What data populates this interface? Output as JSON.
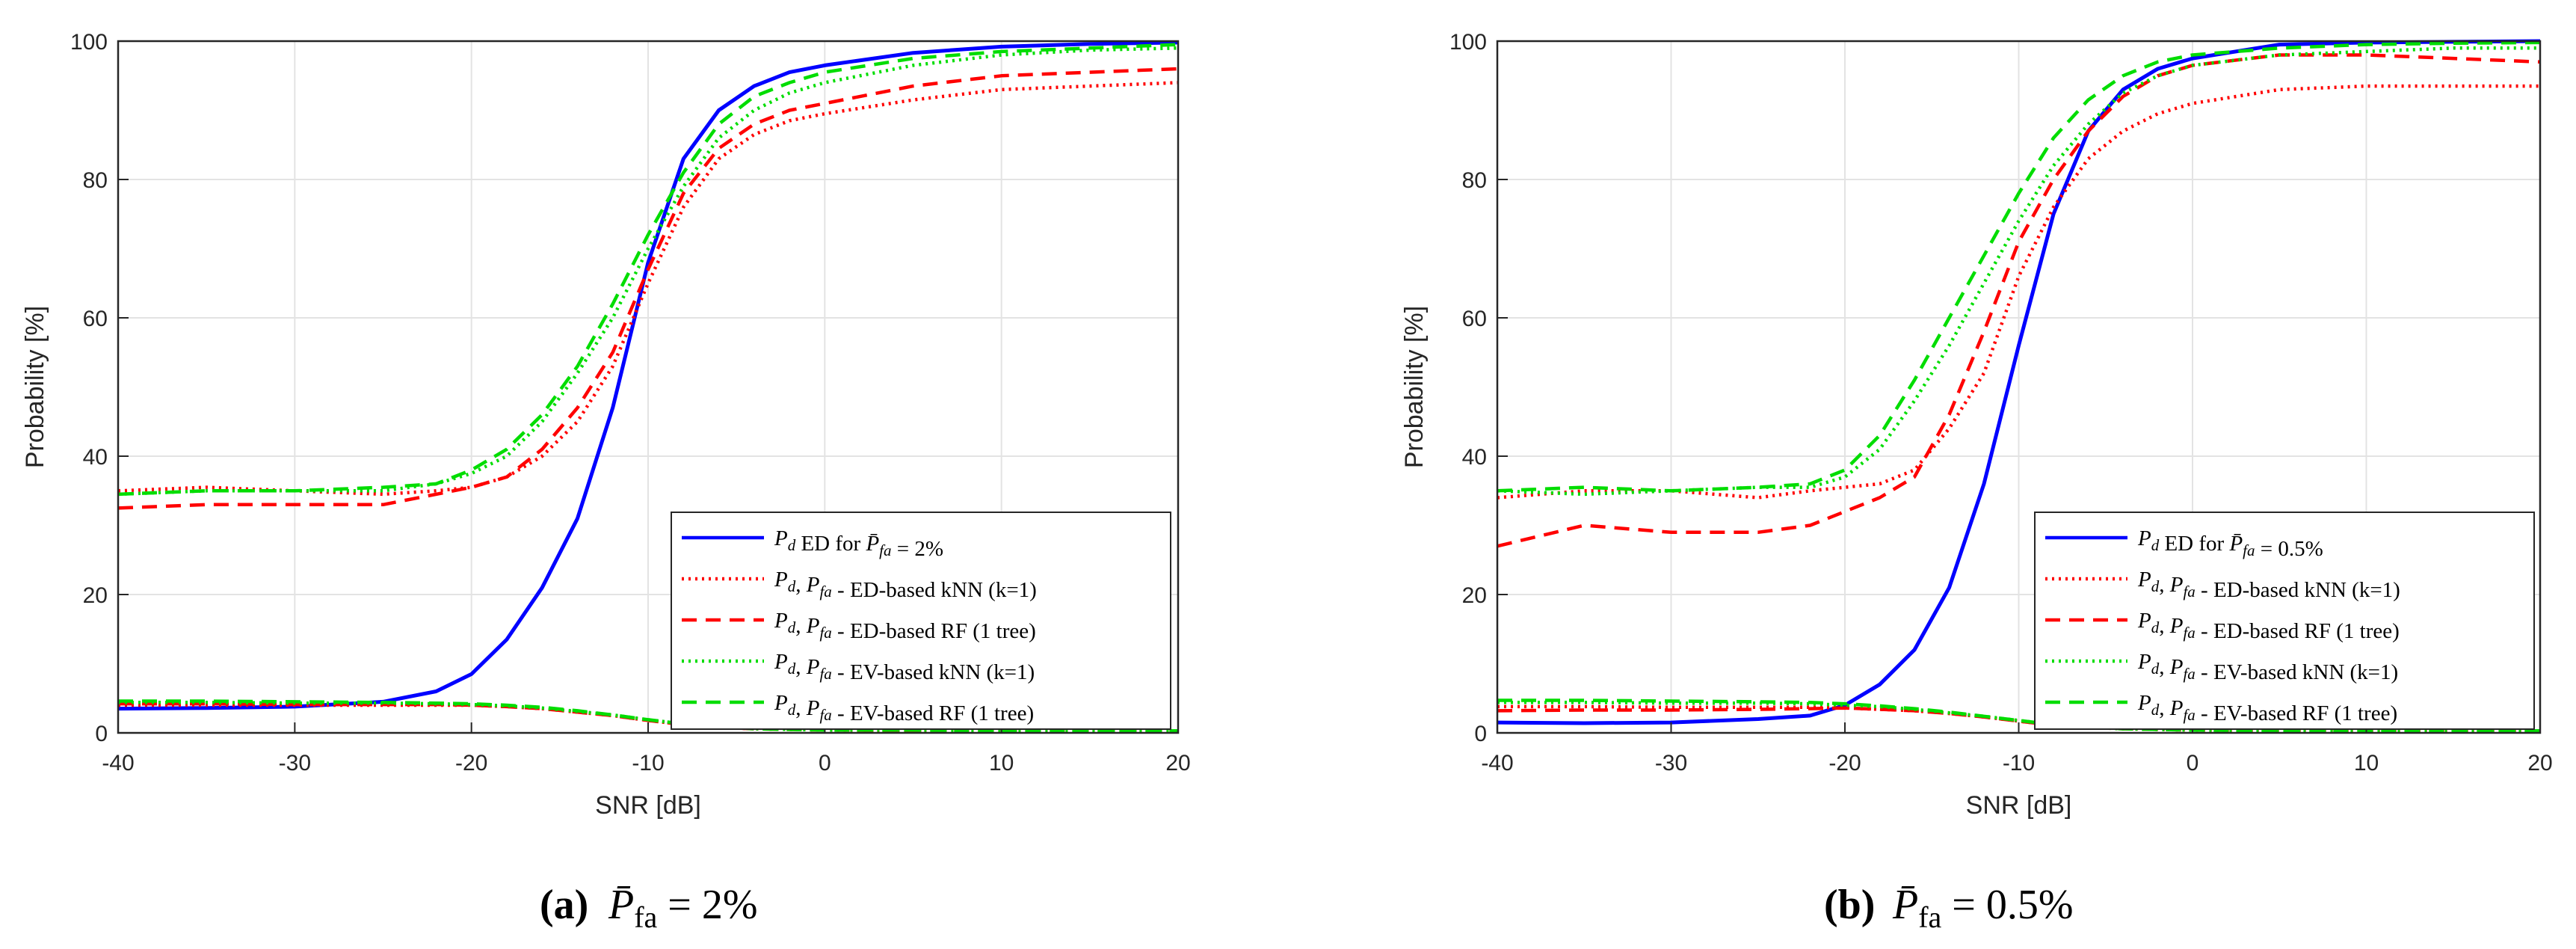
{
  "figure": {
    "panels": [
      {
        "caption_label": "(a)",
        "caption_text": "P̄fa = 2%",
        "legend": [
          "Pd ED for P̄fa = 2%",
          "Pd, Pfa - ED-based kNN (k=1)",
          "Pd, Pfa - ED-based RF (1 tree)",
          "Pd, Pfa - EV-based kNN (k=1)",
          "Pd, Pfa - EV-based RF (1 tree)"
        ]
      },
      {
        "caption_label": "(b)",
        "caption_text": "P̄fa = 0.5%",
        "legend": [
          "Pd ED for P̄fa = 0.5%",
          "Pd, Pfa - ED-based kNN (k=1)",
          "Pd, Pfa - ED-based RF (1 tree)",
          "Pd, Pfa - EV-based kNN (k=1)",
          "Pd, Pfa - EV-based RF (1 tree)"
        ]
      }
    ]
  },
  "chart_data": [
    {
      "type": "line",
      "title": "",
      "caption": "(a) P̄fa = 2%",
      "xlabel": "SNR [dB]",
      "ylabel": "Probability [%]",
      "xlim": [
        -40,
        20
      ],
      "ylim": [
        0,
        100
      ],
      "xticks": [
        -40,
        -30,
        -20,
        -10,
        0,
        10,
        20
      ],
      "yticks": [
        0,
        20,
        40,
        60,
        80,
        100
      ],
      "grid": true,
      "legend_position": "lower-right",
      "x": [
        -40,
        -35,
        -30,
        -25,
        -22,
        -20,
        -18,
        -16,
        -14,
        -12,
        -10,
        -8,
        -6,
        -4,
        -2,
        0,
        5,
        10,
        15,
        20
      ],
      "series": [
        {
          "name": "Pd ED for P̄fa = 2%",
          "role": "Pd",
          "color": "#0000ff",
          "dash": "solid",
          "values": [
            3.5,
            3.6,
            3.8,
            4.5,
            6,
            8.5,
            13.5,
            21,
            31,
            47,
            68,
            83,
            90,
            93.5,
            95.5,
            96.5,
            98.3,
            99.2,
            99.6,
            99.8
          ]
        },
        {
          "name": "Pd, Pfa - ED-based kNN (k=1)",
          "role": "Pd",
          "color": "#ff0000",
          "dash": "dotted",
          "values": [
            35,
            35.5,
            35,
            34.5,
            35,
            35.5,
            37,
            40,
            45,
            53,
            65,
            76,
            83,
            86.5,
            88.5,
            89.5,
            91.5,
            93,
            93.5,
            94
          ]
        },
        {
          "name": "Pd, Pfa - ED-based RF (1 tree)",
          "role": "Pd",
          "color": "#ff0000",
          "dash": "dashed",
          "values": [
            32.5,
            33,
            33,
            33,
            34.5,
            35.5,
            37,
            41,
            47,
            55,
            67,
            78,
            84.5,
            88,
            90,
            91,
            93.5,
            95,
            95.5,
            96
          ]
        },
        {
          "name": "Pd, Pfa - EV-based kNN (k=1)",
          "role": "Pd",
          "color": "#00dd00",
          "dash": "dotted",
          "values": [
            34.5,
            35,
            35,
            35,
            36,
            37.5,
            40,
            45,
            52,
            60,
            70,
            79,
            86,
            90,
            92.5,
            94,
            96.5,
            98,
            98.7,
            99
          ]
        },
        {
          "name": "Pd, Pfa - EV-based RF (1 tree)",
          "role": "Pd",
          "color": "#00dd00",
          "dash": "dashed",
          "values": [
            34.5,
            35,
            35,
            35.5,
            36,
            38,
            41,
            46,
            53,
            62,
            72,
            81,
            88,
            92,
            94,
            95.5,
            97.5,
            98.5,
            99,
            99.5
          ]
        },
        {
          "name": "Pfa - ED-based kNN (k=1)",
          "role": "Pfa",
          "color": "#ff0000",
          "dash": "dotted",
          "values": [
            4,
            4,
            4,
            4,
            4,
            4,
            3.8,
            3.5,
            3,
            2.5,
            1.8,
            1.2,
            0.8,
            0.6,
            0.5,
            0.4,
            0.3,
            0.3,
            0.3,
            0.3
          ]
        },
        {
          "name": "Pfa - ED-based RF (1 tree)",
          "role": "Pfa",
          "color": "#ff0000",
          "dash": "dashed",
          "values": [
            4.2,
            4.2,
            4.1,
            4.1,
            4.1,
            4,
            3.8,
            3.5,
            3,
            2.5,
            1.8,
            1.2,
            0.8,
            0.6,
            0.5,
            0.4,
            0.3,
            0.3,
            0.3,
            0.3
          ]
        },
        {
          "name": "Pfa - EV-based kNN (k=1)",
          "role": "Pfa",
          "color": "#00dd00",
          "dash": "dotted",
          "values": [
            4.4,
            4.4,
            4.3,
            4.3,
            4.2,
            4.1,
            3.9,
            3.6,
            3.1,
            2.6,
            1.9,
            1.3,
            0.9,
            0.6,
            0.5,
            0.4,
            0.4,
            0.3,
            0.3,
            0.3
          ]
        },
        {
          "name": "Pfa - EV-based RF (1 tree)",
          "role": "Pfa",
          "color": "#00dd00",
          "dash": "dashed",
          "values": [
            4.6,
            4.6,
            4.5,
            4.4,
            4.3,
            4.2,
            4,
            3.7,
            3.2,
            2.6,
            1.9,
            1.3,
            0.9,
            0.6,
            0.5,
            0.4,
            0.4,
            0.3,
            0.3,
            0.3
          ]
        }
      ]
    },
    {
      "type": "line",
      "title": "",
      "caption": "(b) P̄fa = 0.5%",
      "xlabel": "SNR [dB]",
      "ylabel": "Probability [%]",
      "xlim": [
        -40,
        20
      ],
      "ylim": [
        0,
        100
      ],
      "xticks": [
        -40,
        -30,
        -20,
        -10,
        0,
        10,
        20
      ],
      "yticks": [
        0,
        20,
        40,
        60,
        80,
        100
      ],
      "grid": true,
      "legend_position": "lower-right",
      "x": [
        -40,
        -35,
        -30,
        -25,
        -22,
        -20,
        -18,
        -16,
        -14,
        -12,
        -10,
        -8,
        -6,
        -4,
        -2,
        0,
        5,
        10,
        15,
        20
      ],
      "series": [
        {
          "name": "Pd ED for P̄fa = 0.5%",
          "role": "Pd",
          "color": "#0000ff",
          "dash": "solid",
          "values": [
            1.5,
            1.4,
            1.5,
            2,
            2.5,
            4,
            7,
            12,
            21,
            36,
            56,
            75,
            87,
            93,
            96,
            97.5,
            99.5,
            99.8,
            99.9,
            100
          ]
        },
        {
          "name": "Pd, Pfa - ED-based kNN (k=1)",
          "role": "Pd",
          "color": "#ff0000",
          "dash": "dotted",
          "values": [
            34,
            35,
            35,
            34,
            35,
            35.5,
            36,
            38,
            44,
            52,
            66,
            76,
            83,
            87,
            89.5,
            91,
            93,
            93.5,
            93.5,
            93.5
          ]
        },
        {
          "name": "Pd, Pfa - ED-based RF (1 tree)",
          "role": "Pd",
          "color": "#ff0000",
          "dash": "dashed",
          "values": [
            27,
            30,
            29,
            29,
            30,
            32,
            34,
            37,
            46,
            58,
            71,
            80,
            87,
            92,
            95,
            96.5,
            98,
            98,
            97.5,
            97
          ]
        },
        {
          "name": "Pd, Pfa - EV-based kNN (k=1)",
          "role": "Pd",
          "color": "#00dd00",
          "dash": "dotted",
          "values": [
            35,
            34.5,
            35,
            35.5,
            35.5,
            37,
            41,
            48,
            56,
            65,
            74,
            82,
            88,
            92.5,
            95,
            96.5,
            98,
            98.5,
            99,
            99
          ]
        },
        {
          "name": "Pd, Pfa - EV-based RF (1 tree)",
          "role": "Pd",
          "color": "#00dd00",
          "dash": "dashed",
          "values": [
            35,
            35.5,
            35,
            35.5,
            36,
            38,
            43,
            51,
            60,
            69,
            78,
            86,
            91.5,
            95,
            97,
            98,
            99,
            99.5,
            99.7,
            99.8
          ]
        },
        {
          "name": "Pfa - ED-based kNN (k=1)",
          "role": "Pfa",
          "color": "#ff0000",
          "dash": "dotted",
          "values": [
            3.8,
            3.8,
            3.7,
            3.7,
            3.7,
            3.6,
            3.4,
            3.2,
            2.8,
            2.3,
            1.7,
            1.1,
            0.8,
            0.6,
            0.5,
            0.4,
            0.3,
            0.3,
            0.3,
            0.3
          ]
        },
        {
          "name": "Pfa - ED-based RF (1 tree)",
          "role": "Pfa",
          "color": "#ff0000",
          "dash": "dashed",
          "values": [
            3.2,
            3.3,
            3.3,
            3.4,
            3.5,
            3.6,
            3.4,
            3.2,
            2.8,
            2.3,
            1.7,
            1.1,
            0.8,
            0.6,
            0.5,
            0.4,
            0.3,
            0.3,
            0.3,
            0.3
          ]
        },
        {
          "name": "Pfa - EV-based kNN (k=1)",
          "role": "Pfa",
          "color": "#00dd00",
          "dash": "dotted",
          "values": [
            4.4,
            4.4,
            4.3,
            4.3,
            4.2,
            4,
            3.8,
            3.4,
            2.9,
            2.4,
            1.8,
            1.2,
            0.8,
            0.6,
            0.5,
            0.4,
            0.3,
            0.3,
            0.3,
            0.3
          ]
        },
        {
          "name": "Pfa - EV-based RF (1 tree)",
          "role": "Pfa",
          "color": "#00dd00",
          "dash": "dashed",
          "values": [
            4.7,
            4.7,
            4.6,
            4.5,
            4.4,
            4.2,
            3.9,
            3.5,
            3,
            2.4,
            1.8,
            1.2,
            0.8,
            0.6,
            0.5,
            0.4,
            0.3,
            0.3,
            0.3,
            0.3
          ]
        }
      ]
    }
  ]
}
